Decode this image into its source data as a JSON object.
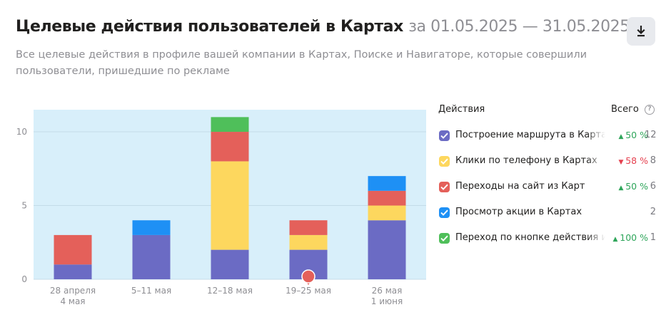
{
  "header": {
    "title": "Целевые действия пользователей в Картах",
    "period": "за 01.05.2025 — 31.05.2025",
    "subtitle": "Все целевые действия в профиле вашей компании в Картах, Поиске и Навигаторе, которые совершили пользователи, пришедшие по рекламе"
  },
  "download_icon": "download-icon",
  "legend": {
    "actions_header": "Действия",
    "total_header": "Всего",
    "help_glyph": "?",
    "items": [
      {
        "label": "Построение маршрута в Картах",
        "change": "50 %",
        "trend": "up",
        "total": "12",
        "color": "#6b6bc4"
      },
      {
        "label": "Клики по телефону в Картах",
        "change": "58 %",
        "trend": "down",
        "total": "8",
        "color": "#fdd75e"
      },
      {
        "label": "Переходы на сайт из Карт",
        "change": "50 %",
        "trend": "up",
        "total": "6",
        "color": "#e4605a"
      },
      {
        "label": "Просмотр акции в Картах",
        "change": "",
        "trend": "",
        "total": "2",
        "color": "#1e90f5"
      },
      {
        "label": "Переход по кнопке действия из Карт",
        "change": "100 %",
        "trend": "up",
        "total": "1",
        "color": "#4fbf5a"
      }
    ]
  },
  "chart_data": {
    "type": "bar",
    "stacked": true,
    "categories": [
      [
        "28 апреля",
        "4 мая"
      ],
      [
        "5–11 мая"
      ],
      [
        "12–18 мая"
      ],
      [
        "19–25 мая"
      ],
      [
        "26 мая",
        "1 июня"
      ]
    ],
    "series": [
      {
        "name": "Построение маршрута в Картах",
        "color": "#6b6bc4",
        "values": [
          1,
          3,
          2,
          2,
          4
        ]
      },
      {
        "name": "Клики по телефону в Картах",
        "color": "#fdd75e",
        "values": [
          0,
          0,
          6,
          1,
          1
        ]
      },
      {
        "name": "Переходы на сайт из Карт",
        "color": "#e4605a",
        "values": [
          2,
          0,
          2,
          1,
          1
        ]
      },
      {
        "name": "Просмотр акции в Картах",
        "color": "#1e90f5",
        "values": [
          0,
          1,
          0,
          0,
          1
        ]
      },
      {
        "name": "Переход по кнопке действия из Карт",
        "color": "#4fbf5a",
        "values": [
          0,
          0,
          1,
          0,
          0
        ]
      }
    ],
    "y_ticks": [
      "0",
      "5",
      "10"
    ],
    "ylim": [
      0,
      11.5
    ],
    "grid": true,
    "background": "#d8effa",
    "marker": {
      "category_index": 3,
      "color": "#e4605a"
    }
  }
}
